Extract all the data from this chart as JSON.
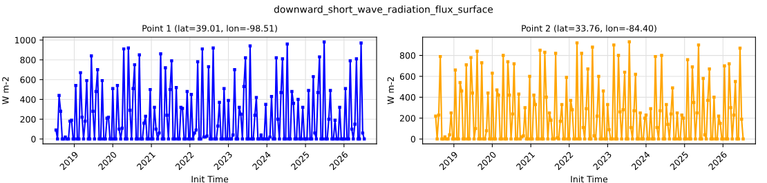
{
  "chart_data": [
    {
      "type": "line",
      "title": "Point 1 (lat=39.01, lon=-98.51)",
      "xlabel": "Init Time",
      "ylabel": "W m-2",
      "annotations": [
        "downward_short_wave_radiation_flux_surface"
      ],
      "marker": "square",
      "line_style": "solid",
      "grid": true,
      "xlim": [
        "2018-03-10",
        "2026-11-06"
      ],
      "ylim": [
        -49,
        1029
      ],
      "xticks": [
        {
          "value": "2019-01-01",
          "label": "2019"
        },
        {
          "value": "2020-01-01",
          "label": "2020"
        },
        {
          "value": "2021-01-01",
          "label": "2021"
        },
        {
          "value": "2022-01-01",
          "label": "2022"
        },
        {
          "value": "2023-01-01",
          "label": "2023"
        },
        {
          "value": "2024-01-01",
          "label": "2024"
        },
        {
          "value": "2025-01-01",
          "label": "2025"
        },
        {
          "value": "2026-01-01",
          "label": "2026"
        }
      ],
      "yticks": [
        0,
        200,
        400,
        600,
        800,
        1000
      ],
      "x": [
        "2018-07-12",
        "2018-07-26",
        "2018-08-10",
        "2018-08-25",
        "2018-09-09",
        "2018-09-23",
        "2018-10-08",
        "2018-10-23",
        "2018-11-07",
        "2018-11-21",
        "2018-12-06",
        "2018-12-21",
        "2019-01-01",
        "2019-01-15",
        "2019-01-30",
        "2019-02-14",
        "2019-03-01",
        "2019-03-16",
        "2019-03-30",
        "2019-04-14",
        "2019-04-29",
        "2019-05-14",
        "2019-05-28",
        "2019-06-12",
        "2019-06-27",
        "2019-07-12",
        "2019-07-26",
        "2019-08-10",
        "2019-08-25",
        "2019-09-09",
        "2019-09-23",
        "2019-10-08",
        "2019-10-23",
        "2019-11-07",
        "2019-11-21",
        "2019-12-06",
        "2019-12-21",
        "2020-01-01",
        "2020-01-15",
        "2020-01-30",
        "2020-02-14",
        "2020-03-01",
        "2020-03-16",
        "2020-03-30",
        "2020-04-14",
        "2020-04-29",
        "2020-05-14",
        "2020-05-28",
        "2020-06-12",
        "2020-06-27",
        "2020-07-12",
        "2020-07-26",
        "2020-08-10",
        "2020-08-25",
        "2020-09-09",
        "2020-09-23",
        "2020-10-08",
        "2020-10-23",
        "2020-11-07",
        "2020-11-21",
        "2020-12-06",
        "2020-12-21",
        "2021-01-01",
        "2021-01-15",
        "2021-01-30",
        "2021-02-14",
        "2021-03-01",
        "2021-03-16",
        "2021-03-30",
        "2021-04-14",
        "2021-04-29",
        "2021-05-14",
        "2021-05-28",
        "2021-06-12",
        "2021-06-27",
        "2021-07-12",
        "2021-07-26",
        "2021-08-10",
        "2021-08-25",
        "2021-09-09",
        "2021-09-23",
        "2021-10-08",
        "2021-10-23",
        "2021-11-07",
        "2021-11-21",
        "2021-12-06",
        "2021-12-21",
        "2022-01-01",
        "2022-01-15",
        "2022-01-30",
        "2022-02-14",
        "2022-03-01",
        "2022-03-16",
        "2022-03-30",
        "2022-04-14",
        "2022-04-29",
        "2022-05-14",
        "2022-05-28",
        "2022-06-12",
        "2022-06-27",
        "2022-07-12",
        "2022-07-26",
        "2022-08-10",
        "2022-08-25",
        "2022-09-09",
        "2022-09-23",
        "2022-10-08",
        "2022-10-23",
        "2022-11-07",
        "2022-11-21",
        "2022-12-06",
        "2022-12-21",
        "2023-01-01",
        "2023-01-15",
        "2023-01-30",
        "2023-02-14",
        "2023-03-01",
        "2023-03-16",
        "2023-03-30",
        "2023-04-14",
        "2023-04-29",
        "2023-05-14",
        "2023-05-28",
        "2023-06-12",
        "2023-06-27",
        "2023-07-12",
        "2023-07-26",
        "2023-08-10",
        "2023-08-25",
        "2023-09-09",
        "2023-09-23",
        "2023-10-08",
        "2023-10-23",
        "2023-11-07",
        "2023-11-21",
        "2023-12-06",
        "2023-12-21",
        "2024-01-01",
        "2024-01-15",
        "2024-01-30",
        "2024-02-14",
        "2024-03-01",
        "2024-03-16",
        "2024-03-30",
        "2024-04-14",
        "2024-04-29",
        "2024-05-14",
        "2024-05-28",
        "2024-06-12",
        "2024-06-27",
        "2024-07-12",
        "2024-07-26",
        "2024-08-10",
        "2024-08-25",
        "2024-09-09",
        "2024-09-23",
        "2024-10-08",
        "2024-10-23",
        "2024-11-07",
        "2024-11-21",
        "2024-12-06",
        "2024-12-21",
        "2025-01-01",
        "2025-01-15",
        "2025-01-30",
        "2025-02-14",
        "2025-03-01",
        "2025-03-16",
        "2025-03-30",
        "2025-04-14",
        "2025-04-29",
        "2025-05-14",
        "2025-05-28",
        "2025-06-12",
        "2025-06-27",
        "2025-07-12",
        "2025-07-26",
        "2025-08-10",
        "2025-08-25",
        "2025-09-09",
        "2025-09-23",
        "2025-10-08",
        "2025-10-23",
        "2025-11-07",
        "2025-11-21",
        "2025-12-06",
        "2025-12-21",
        "2026-01-01",
        "2026-01-15",
        "2026-01-30",
        "2026-02-14",
        "2026-03-01",
        "2026-03-16",
        "2026-03-30",
        "2026-04-14",
        "2026-04-29",
        "2026-05-14",
        "2026-05-28",
        "2026-06-12",
        "2026-06-27",
        "2026-07-12"
      ],
      "series": [
        {
          "color": "#0000ff",
          "values": [
            90,
            0,
            440,
            280,
            0,
            0,
            20,
            0,
            0,
            180,
            190,
            0,
            0,
            540,
            0,
            0,
            670,
            220,
            0,
            180,
            590,
            0,
            0,
            840,
            280,
            0,
            480,
            700,
            0,
            0,
            590,
            0,
            0,
            210,
            220,
            0,
            0,
            510,
            0,
            0,
            540,
            100,
            0,
            110,
            910,
            0,
            0,
            920,
            290,
            0,
            510,
            750,
            0,
            0,
            850,
            0,
            0,
            160,
            230,
            0,
            0,
            500,
            0,
            0,
            320,
            100,
            0,
            60,
            860,
            0,
            0,
            720,
            240,
            0,
            500,
            790,
            0,
            0,
            520,
            0,
            0,
            320,
            310,
            0,
            0,
            480,
            0,
            0,
            450,
            0,
            60,
            90,
            780,
            0,
            0,
            910,
            20,
            20,
            30,
            730,
            0,
            0,
            920,
            0,
            0,
            130,
            370,
            0,
            0,
            510,
            0,
            0,
            390,
            0,
            0,
            40,
            700,
            0,
            0,
            320,
            250,
            0,
            530,
            820,
            0,
            0,
            940,
            0,
            0,
            240,
            420,
            0,
            0,
            40,
            0,
            0,
            350,
            0,
            0,
            20,
            430,
            0,
            0,
            820,
            200,
            0,
            470,
            810,
            0,
            0,
            960,
            0,
            0,
            480,
            360,
            0,
            0,
            400,
            0,
            0,
            320,
            0,
            0,
            0,
            490,
            0,
            0,
            630,
            60,
            0,
            470,
            830,
            0,
            0,
            980,
            0,
            0,
            200,
            490,
            0,
            0,
            190,
            0,
            0,
            320,
            0,
            0,
            0,
            510,
            0,
            0,
            790,
            100,
            0,
            150,
            810,
            0,
            0,
            970,
            60,
            0
          ]
        }
      ]
    },
    {
      "type": "line",
      "title": "Point 2 (lat=33.76, lon=-84.40)",
      "xlabel": "Init Time",
      "ylabel": "W m-2",
      "marker": "square",
      "line_style": "solid",
      "grid": true,
      "xlim": [
        "2018-03-10",
        "2026-11-06"
      ],
      "ylim": [
        -46,
        975
      ],
      "xticks": [
        {
          "value": "2019-01-01",
          "label": "2019"
        },
        {
          "value": "2020-01-01",
          "label": "2020"
        },
        {
          "value": "2021-01-01",
          "label": "2021"
        },
        {
          "value": "2022-01-01",
          "label": "2022"
        },
        {
          "value": "2023-01-01",
          "label": "2023"
        },
        {
          "value": "2024-01-01",
          "label": "2024"
        },
        {
          "value": "2025-01-01",
          "label": "2025"
        },
        {
          "value": "2026-01-01",
          "label": "2026"
        }
      ],
      "yticks": [
        0,
        200,
        400,
        600,
        800
      ],
      "x": [
        "2018-07-12",
        "2018-07-26",
        "2018-08-10",
        "2018-08-25",
        "2018-09-09",
        "2018-09-23",
        "2018-10-08",
        "2018-10-23",
        "2018-11-07",
        "2018-11-21",
        "2018-12-06",
        "2018-12-21",
        "2019-01-01",
        "2019-01-15",
        "2019-01-30",
        "2019-02-14",
        "2019-03-01",
        "2019-03-16",
        "2019-03-30",
        "2019-04-14",
        "2019-04-29",
        "2019-05-14",
        "2019-05-28",
        "2019-06-12",
        "2019-06-27",
        "2019-07-12",
        "2019-07-26",
        "2019-08-10",
        "2019-08-25",
        "2019-09-09",
        "2019-09-23",
        "2019-10-08",
        "2019-10-23",
        "2019-11-07",
        "2019-11-21",
        "2019-12-06",
        "2019-12-21",
        "2020-01-01",
        "2020-01-15",
        "2020-01-30",
        "2020-02-14",
        "2020-03-01",
        "2020-03-16",
        "2020-03-30",
        "2020-04-14",
        "2020-04-29",
        "2020-05-14",
        "2020-05-28",
        "2020-06-12",
        "2020-06-27",
        "2020-07-12",
        "2020-07-26",
        "2020-08-10",
        "2020-08-25",
        "2020-09-09",
        "2020-09-23",
        "2020-10-08",
        "2020-10-23",
        "2020-11-07",
        "2020-11-21",
        "2020-12-06",
        "2020-12-21",
        "2021-01-01",
        "2021-01-15",
        "2021-01-30",
        "2021-02-14",
        "2021-03-01",
        "2021-03-16",
        "2021-03-30",
        "2021-04-14",
        "2021-04-29",
        "2021-05-14",
        "2021-05-28",
        "2021-06-12",
        "2021-06-27",
        "2021-07-12",
        "2021-07-26",
        "2021-08-10",
        "2021-08-25",
        "2021-09-09",
        "2021-09-23",
        "2021-10-08",
        "2021-10-23",
        "2021-11-07",
        "2021-11-21",
        "2021-12-06",
        "2021-12-21",
        "2022-01-01",
        "2022-01-15",
        "2022-01-30",
        "2022-02-14",
        "2022-03-01",
        "2022-03-16",
        "2022-03-30",
        "2022-04-14",
        "2022-04-29",
        "2022-05-14",
        "2022-05-28",
        "2022-06-12",
        "2022-06-27",
        "2022-07-12",
        "2022-07-26",
        "2022-08-10",
        "2022-08-25",
        "2022-09-09",
        "2022-09-23",
        "2022-10-08",
        "2022-10-23",
        "2022-11-07",
        "2022-11-21",
        "2022-12-06",
        "2022-12-21",
        "2023-01-01",
        "2023-01-15",
        "2023-01-30",
        "2023-02-14",
        "2023-03-01",
        "2023-03-16",
        "2023-03-30",
        "2023-04-14",
        "2023-04-29",
        "2023-05-14",
        "2023-05-28",
        "2023-06-12",
        "2023-06-27",
        "2023-07-12",
        "2023-07-26",
        "2023-08-10",
        "2023-08-25",
        "2023-09-09",
        "2023-09-23",
        "2023-10-08",
        "2023-10-23",
        "2023-11-07",
        "2023-11-21",
        "2023-12-06",
        "2023-12-21",
        "2024-01-01",
        "2024-01-15",
        "2024-01-30",
        "2024-02-14",
        "2024-03-01",
        "2024-03-16",
        "2024-03-30",
        "2024-04-14",
        "2024-04-29",
        "2024-05-14",
        "2024-05-28",
        "2024-06-12",
        "2024-06-27",
        "2024-07-12",
        "2024-07-26",
        "2024-08-10",
        "2024-08-25",
        "2024-09-09",
        "2024-09-23",
        "2024-10-08",
        "2024-10-23",
        "2024-11-07",
        "2024-11-21",
        "2024-12-06",
        "2024-12-21",
        "2025-01-01",
        "2025-01-15",
        "2025-01-30",
        "2025-02-14",
        "2025-03-01",
        "2025-03-16",
        "2025-03-30",
        "2025-04-14",
        "2025-04-29",
        "2025-05-14",
        "2025-05-28",
        "2025-06-12",
        "2025-06-27",
        "2025-07-12",
        "2025-07-26",
        "2025-08-10",
        "2025-08-25",
        "2025-09-09",
        "2025-09-23",
        "2025-10-08",
        "2025-10-23",
        "2025-11-07",
        "2025-11-21",
        "2025-12-06",
        "2025-12-21",
        "2026-01-01",
        "2026-01-15",
        "2026-01-30",
        "2026-02-14",
        "2026-03-01",
        "2026-03-16",
        "2026-03-30",
        "2026-04-14",
        "2026-04-29",
        "2026-05-14",
        "2026-05-28",
        "2026-06-12",
        "2026-06-27",
        "2026-07-12"
      ],
      "series": [
        {
          "color": "#ffa500",
          "values": [
            220,
            0,
            230,
            790,
            0,
            0,
            20,
            0,
            0,
            40,
            250,
            0,
            0,
            660,
            0,
            0,
            540,
            460,
            0,
            0,
            710,
            0,
            0,
            780,
            440,
            0,
            100,
            840,
            0,
            0,
            730,
            0,
            0,
            80,
            440,
            0,
            0,
            630,
            0,
            0,
            470,
            420,
            0,
            0,
            800,
            0,
            0,
            740,
            420,
            0,
            240,
            720,
            0,
            0,
            430,
            0,
            20,
            30,
            300,
            0,
            0,
            600,
            0,
            0,
            420,
            330,
            0,
            0,
            850,
            0,
            0,
            830,
            400,
            0,
            250,
            180,
            0,
            0,
            820,
            10,
            0,
            170,
            330,
            0,
            0,
            590,
            0,
            0,
            370,
            280,
            0,
            0,
            920,
            0,
            0,
            820,
            110,
            0,
            290,
            670,
            0,
            0,
            880,
            30,
            0,
            220,
            600,
            0,
            0,
            460,
            0,
            0,
            330,
            90,
            0,
            0,
            900,
            0,
            0,
            800,
            260,
            0,
            280,
            640,
            0,
            0,
            930,
            110,
            0,
            270,
            620,
            0,
            0,
            250,
            0,
            0,
            200,
            230,
            0,
            0,
            290,
            0,
            0,
            790,
            110,
            0,
            270,
            800,
            0,
            0,
            330,
            140,
            0,
            240,
            490,
            0,
            0,
            250,
            0,
            0,
            230,
            200,
            0,
            0,
            760,
            0,
            0,
            690,
            350,
            0,
            250,
            900,
            0,
            0,
            580,
            40,
            0,
            370,
            670,
            0,
            0,
            400,
            0,
            0,
            220,
            150,
            0,
            0,
            700,
            0,
            0,
            720,
            300,
            0,
            230,
            550,
            0,
            0,
            870,
            190,
            0
          ]
        }
      ]
    }
  ]
}
